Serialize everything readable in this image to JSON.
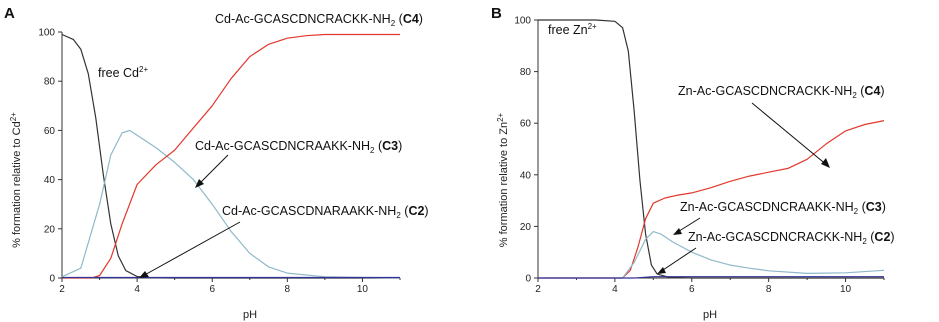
{
  "chart_data": [
    {
      "panel": "A",
      "type": "line",
      "xlabel": "pH",
      "ylabel": "% formation relative to Cd2+",
      "xlim": [
        2,
        11
      ],
      "ylim": [
        0,
        100
      ],
      "xticks": [
        2,
        4,
        6,
        8,
        10
      ],
      "yticks": [
        0,
        20,
        40,
        60,
        80,
        100
      ],
      "series": [
        {
          "name": "free Cd2+",
          "color": "#333333",
          "x": [
            2,
            2.3,
            2.5,
            2.7,
            2.9,
            3.1,
            3.3,
            3.5,
            3.7,
            4.0,
            4.3,
            5,
            6,
            8,
            11
          ],
          "y": [
            99,
            97,
            93,
            83,
            65,
            42,
            22,
            9,
            3,
            0.6,
            0.1,
            0,
            0,
            0,
            0
          ]
        },
        {
          "name": "Cd-Ac-GCASCDNCRAAKK-NH2 (C3)",
          "color": "#8fb9c9",
          "x": [
            2,
            2.5,
            3.0,
            3.3,
            3.6,
            3.8,
            4.0,
            4.5,
            5.0,
            5.5,
            6.0,
            6.5,
            7.0,
            7.5,
            8.0,
            9,
            10,
            11
          ],
          "y": [
            0.5,
            4,
            30,
            50,
            59,
            60,
            58,
            53,
            47,
            40,
            30,
            19,
            10,
            4.5,
            2,
            0.5,
            0.2,
            0
          ]
        },
        {
          "name": "Cd-Ac-GCASCDNCRACKK-NH2 (C4)",
          "color": "#e2382c",
          "x": [
            2,
            2.8,
            3.0,
            3.3,
            3.6,
            4.0,
            4.5,
            5.0,
            5.5,
            6.0,
            6.5,
            7.0,
            7.5,
            8.0,
            8.5,
            9,
            10,
            11
          ],
          "y": [
            0,
            0,
            1,
            8,
            22,
            38,
            46,
            52,
            61,
            70,
            81,
            90,
            95,
            97.5,
            98.5,
            99,
            99,
            99
          ]
        },
        {
          "name": "Cd-Ac-GCASCDNARAAKK-NH2 (C2)",
          "color": "#333399",
          "x": [
            2,
            11
          ],
          "y": [
            0.2,
            0.2
          ]
        }
      ],
      "annotations": [
        {
          "text": "free Cd",
          "sup": "2+"
        },
        {
          "text": "Cd-Ac-GCASCDNCRACKK-NH",
          "sub": "2",
          "bold": "C4"
        },
        {
          "text": "Cd-Ac-GCASCDNCRAAKK-NH",
          "sub": "2",
          "bold": "C3"
        },
        {
          "text": "Cd-Ac-GCASCDNARAAKK-NH",
          "sub": "2",
          "bold": "C2"
        }
      ]
    },
    {
      "panel": "B",
      "type": "line",
      "xlabel": "pH",
      "ylabel": "% formation relative to Zn2+",
      "xlim": [
        2,
        11
      ],
      "ylim": [
        0,
        100
      ],
      "xticks": [
        2,
        4,
        6,
        8,
        10
      ],
      "yticks": [
        0,
        20,
        40,
        60,
        80,
        100
      ],
      "series": [
        {
          "name": "free Zn2+",
          "color": "#333333",
          "x": [
            2,
            3.5,
            4.0,
            4.2,
            4.35,
            4.5,
            4.65,
            4.8,
            4.95,
            5.1,
            5.4,
            6,
            8,
            11
          ],
          "y": [
            100,
            100,
            99.5,
            97,
            88,
            65,
            38,
            17,
            5,
            1.5,
            0.3,
            0,
            0,
            0
          ]
        },
        {
          "name": "Zn-Ac-GCASCDNCRACKK-NH2 (C4)",
          "color": "#e2382c",
          "x": [
            2,
            4.2,
            4.4,
            4.6,
            4.8,
            5.0,
            5.3,
            5.6,
            6.0,
            6.5,
            7.0,
            7.5,
            8.0,
            8.5,
            9.0,
            9.5,
            10.0,
            10.5,
            11
          ],
          "y": [
            0,
            0,
            3,
            12,
            23,
            29,
            31,
            32,
            33,
            35,
            37.5,
            39.5,
            41,
            42.5,
            46,
            52,
            57,
            59.5,
            61
          ]
        },
        {
          "name": "Zn-Ac-GCASCDNCRAAKK-NH2 (C3)",
          "color": "#8fb9c9",
          "x": [
            2,
            4.2,
            4.5,
            4.8,
            5.0,
            5.2,
            5.5,
            6.0,
            6.5,
            7.0,
            7.5,
            8.0,
            9.0,
            10,
            11
          ],
          "y": [
            0,
            0,
            6,
            15,
            18,
            17,
            14,
            10,
            7,
            5,
            3.8,
            2.8,
            1.8,
            2,
            3
          ]
        },
        {
          "name": "Zn-Ac-GCASCDNCRACKK-NH2 (C2)",
          "color": "#333399",
          "x": [
            2,
            4.5,
            5.0,
            6,
            8,
            11
          ],
          "y": [
            0,
            0,
            0.5,
            0.5,
            0.5,
            0.5
          ]
        }
      ],
      "annotations": [
        {
          "text": "free Zn",
          "sup": "2+"
        },
        {
          "text": "Zn-Ac-GCASCDNCRACKK-NH",
          "sub": "2",
          "bold": "C4"
        },
        {
          "text": "Zn-Ac-GCASCDNCRAAKK-NH",
          "sub": "2",
          "bold": "C3"
        },
        {
          "text": "Zn-Ac-GCASCDNCRACKK-NH",
          "sub": "2",
          "bold": "C2"
        }
      ]
    }
  ]
}
